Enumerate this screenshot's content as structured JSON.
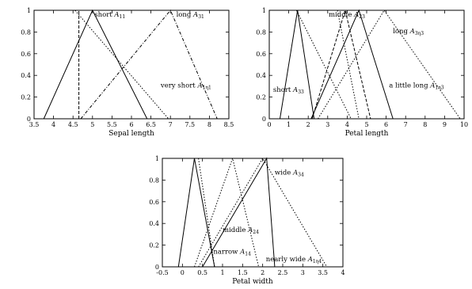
{
  "chart_data": [
    {
      "type": "line",
      "xlabel": "Sepal length",
      "ylabel": "",
      "xlim": [
        3.5,
        8.5
      ],
      "ylim": [
        0,
        1
      ],
      "x_ticks": [
        "3.5",
        "4",
        "4.5",
        "5",
        "5.5",
        "6",
        "6.5",
        "7",
        "7.5",
        "8",
        "8.5"
      ],
      "y_ticks": [
        "0",
        "0.2",
        "0.4",
        "0.6",
        "0.8",
        "1"
      ],
      "series": [
        {
          "name": "short",
          "sub": "11",
          "style": "solid",
          "points": [
            [
              3.75,
              0
            ],
            [
              5.0,
              1
            ],
            [
              6.4,
              0
            ]
          ]
        },
        {
          "name": "long",
          "sub": "31",
          "style": "dashdot",
          "points": [
            [
              4.7,
              0
            ],
            [
              7.0,
              1
            ],
            [
              8.2,
              0
            ]
          ]
        },
        {
          "name": "very short",
          "sub": "1η1",
          "style": "dotted",
          "points": [
            [
              4.55,
              1
            ],
            [
              6.95,
              0
            ]
          ]
        },
        {
          "name": "",
          "style": "dashed",
          "points": [
            [
              4.65,
              0
            ],
            [
              4.65,
              1
            ]
          ]
        }
      ],
      "annotations": [
        {
          "text": "short ",
          "sub": "11",
          "x": 5.05,
          "y": 0.94
        },
        {
          "text": "long ",
          "sub": "31",
          "x": 7.15,
          "y": 0.94
        },
        {
          "text": "very short ",
          "sub": "1η1",
          "x": 6.75,
          "y": 0.29
        }
      ]
    },
    {
      "type": "line",
      "xlabel": "Petal length",
      "ylabel": "",
      "xlim": [
        0,
        10
      ],
      "ylim": [
        0,
        1
      ],
      "x_ticks": [
        "0",
        "1",
        "2",
        "3",
        "4",
        "5",
        "6",
        "7",
        "8",
        "9",
        "10"
      ],
      "y_ticks": [
        "0",
        "0.2",
        "0.4",
        "0.6",
        "0.8",
        "1"
      ],
      "series": [
        {
          "name": "short",
          "sub": "33",
          "style": "solid",
          "points": [
            [
              0.55,
              0
            ],
            [
              1.45,
              1
            ],
            [
              2.3,
              0
            ]
          ]
        },
        {
          "name": "middle",
          "sub": "23",
          "style": "dashed",
          "points": [
            [
              2.2,
              0
            ],
            [
              3.9,
              1
            ],
            [
              5.2,
              0
            ]
          ]
        },
        {
          "name": "",
          "style": "solid",
          "points": [
            [
              2.15,
              0
            ],
            [
              4.6,
              1
            ],
            [
              6.35,
              0
            ]
          ]
        },
        {
          "name": "long",
          "sub": "3η3",
          "style": "dotted",
          "points": [
            [
              2.5,
              0
            ],
            [
              5.9,
              1
            ],
            [
              9.8,
              0
            ]
          ]
        },
        {
          "name": "a little long",
          "sub": "1η3",
          "style": "dotted",
          "points": [
            [
              1.4,
              1
            ],
            [
              4.2,
              0
            ]
          ]
        },
        {
          "name": "",
          "style": "dotted",
          "points": [
            [
              3.5,
              1
            ],
            [
              4.6,
              0
            ]
          ]
        }
      ],
      "annotations": [
        {
          "text": "middle ",
          "sub": "23",
          "x": 3.05,
          "y": 0.94
        },
        {
          "text": "long ",
          "sub": "3η3",
          "x": 6.35,
          "y": 0.79
        },
        {
          "text": "short ",
          "sub": "33",
          "x": 0.2,
          "y": 0.25
        },
        {
          "text": "a little long ",
          "sub": "1η3",
          "x": 6.15,
          "y": 0.29
        }
      ]
    },
    {
      "type": "line",
      "xlabel": "Petal width",
      "ylabel": "",
      "xlim": [
        -0.5,
        4
      ],
      "ylim": [
        0,
        1
      ],
      "x_ticks": [
        "-0.5",
        "0",
        "0.5",
        "1",
        "1.5",
        "2",
        "2.5",
        "3",
        "3.5",
        "4"
      ],
      "y_ticks": [
        "0",
        "0.2",
        "0.4",
        "0.6",
        "0.8",
        "1"
      ],
      "series": [
        {
          "name": "narrow",
          "sub": "14",
          "style": "solid",
          "points": [
            [
              -0.1,
              0
            ],
            [
              0.3,
              1
            ],
            [
              0.8,
              0
            ]
          ]
        },
        {
          "name": "middle",
          "sub": "24",
          "style": "dotted",
          "points": [
            [
              0.3,
              0
            ],
            [
              1.25,
              1
            ],
            [
              1.9,
              0
            ]
          ]
        },
        {
          "name": "",
          "style": "solid",
          "points": [
            [
              0.5,
              0
            ],
            [
              2.1,
              1
            ],
            [
              2.3,
              0
            ]
          ]
        },
        {
          "name": "wide",
          "sub": "34",
          "style": "dotted",
          "points": [
            [
              0.4,
              0
            ],
            [
              2.0,
              1
            ],
            [
              3.6,
              0
            ]
          ]
        },
        {
          "name": "nearly wide",
          "sub": "1η4",
          "style": "dotted",
          "points": [
            [
              0.4,
              1
            ],
            [
              0.8,
              0
            ]
          ]
        }
      ],
      "annotations": [
        {
          "text": "wide ",
          "sub": "34",
          "x": 2.3,
          "y": 0.85
        },
        {
          "text": "middle ",
          "sub": "24",
          "x": 1.0,
          "y": 0.32
        },
        {
          "text": "narrow ",
          "sub": "14",
          "x": 0.77,
          "y": 0.12
        },
        {
          "text": "nearly wide ",
          "sub": "1η4",
          "x": 2.08,
          "y": 0.05
        }
      ]
    }
  ]
}
